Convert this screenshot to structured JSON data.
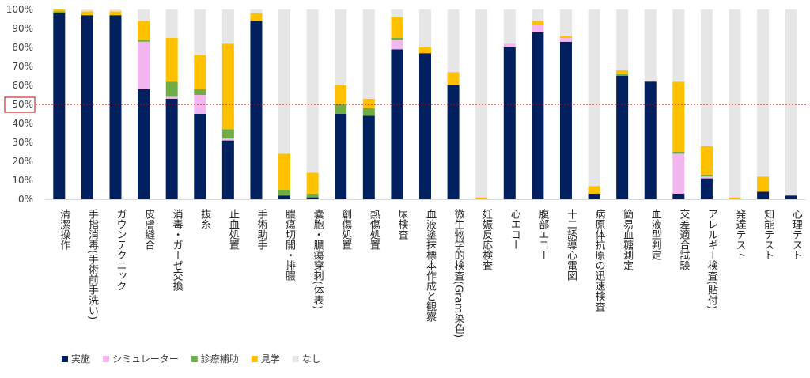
{
  "chart_data": {
    "type": "bar",
    "stacked": true,
    "percent": true,
    "ylim": [
      0,
      100
    ],
    "yticks": [
      0,
      10,
      20,
      30,
      40,
      50,
      60,
      70,
      80,
      90,
      100
    ],
    "ytick_labels": [
      "0%",
      "10%",
      "20%",
      "30%",
      "40%",
      "50%",
      "60%",
      "70%",
      "80%",
      "90%",
      "100%"
    ],
    "reference_line": {
      "value": 50,
      "color": "#c00000",
      "style": "dotted"
    },
    "highlight_tick": "50%",
    "grid": false,
    "legend_position": "bottom-left",
    "categories": [
      "清潔操作",
      "手指消毒(手術前手洗い)",
      "ガウンテクニック",
      "皮膚縫合",
      "消毒・ガーゼ交換",
      "抜糸",
      "止血処置",
      "手術助手",
      "膿瘍切開・排膿",
      "嚢胞・膿瘍穿刺(体表)",
      "創傷処置",
      "熱傷処置",
      "尿検査",
      "血液塗抹標本作成と観察",
      "微生物学的検査(Gram染色)",
      "妊娠反応検査",
      "心エコー",
      "腹部エコー",
      "十二誘導心電図",
      "病原体抗原の迅速検査",
      "簡易血糖測定",
      "血液型判定",
      "交差適合試験",
      "アレルギー検査(貼付)",
      "発達テスト",
      "知能テスト",
      "心理テスト"
    ],
    "series": [
      {
        "name": "実施",
        "color": "#002060",
        "values": [
          98,
          97,
          97,
          58,
          53,
          45,
          31,
          94,
          2,
          1,
          45,
          44,
          79,
          77,
          60,
          0,
          80,
          88,
          83,
          3,
          65,
          62,
          3,
          11,
          0,
          4,
          2
        ]
      },
      {
        "name": "シミュレーター",
        "color": "#f4b6f0",
        "values": [
          0,
          0,
          0,
          25,
          1,
          10,
          1,
          0,
          0,
          0,
          0,
          0,
          5,
          0,
          0,
          0,
          2,
          4,
          2,
          0,
          0,
          0,
          21,
          1,
          0,
          0,
          0
        ]
      },
      {
        "name": "診療補助",
        "color": "#70ad47",
        "values": [
          1,
          0,
          0,
          1,
          8,
          3,
          5,
          0,
          3,
          2,
          5,
          4,
          1,
          0,
          0,
          0,
          0,
          0,
          0,
          0,
          1,
          0,
          1,
          1,
          0,
          0,
          0
        ]
      },
      {
        "name": "見学",
        "color": "#ffc000",
        "values": [
          1,
          2,
          2,
          10,
          23,
          18,
          45,
          4,
          19,
          11,
          10,
          5,
          11,
          3,
          7,
          1,
          0,
          2,
          1,
          4,
          2,
          0,
          37,
          15,
          1,
          8,
          0
        ]
      },
      {
        "name": "なし",
        "color": "#e6e6e6",
        "values": [
          0,
          1,
          1,
          6,
          15,
          24,
          18,
          2,
          76,
          86,
          40,
          47,
          4,
          20,
          33,
          99,
          18,
          6,
          14,
          93,
          32,
          38,
          38,
          72,
          99,
          88,
          98
        ]
      }
    ]
  }
}
